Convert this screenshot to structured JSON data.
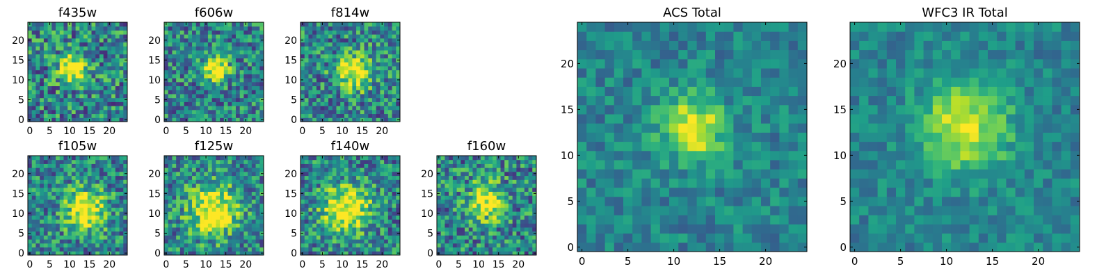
{
  "chart_data": [
    {
      "type": "heatmap",
      "title": "f435w",
      "grid_size": 25,
      "center": [
        11,
        13
      ],
      "peak": 0.68,
      "spread": 2.6,
      "noise": 0.34,
      "seed": 11,
      "xticks": [
        0,
        5,
        10,
        15,
        20
      ],
      "yticks": [
        0,
        5,
        10,
        15,
        20
      ],
      "xlim": [
        0,
        24
      ],
      "ylim": [
        0,
        24
      ],
      "colormap": "viridis"
    },
    {
      "type": "heatmap",
      "title": "f606w",
      "grid_size": 25,
      "center": [
        12.5,
        13
      ],
      "peak": 0.72,
      "spread": 2.1,
      "noise": 0.3,
      "seed": 22,
      "xticks": [
        0,
        5,
        10,
        15,
        20
      ],
      "yticks": [
        0,
        5,
        10,
        15,
        20
      ],
      "xlim": [
        0,
        24
      ],
      "ylim": [
        0,
        24
      ],
      "colormap": "viridis"
    },
    {
      "type": "heatmap",
      "title": "f814w",
      "grid_size": 25,
      "center": [
        13,
        12
      ],
      "peak": 0.6,
      "spread": 3.2,
      "noise": 0.32,
      "seed": 33,
      "xticks": [
        0,
        5,
        10,
        15,
        20
      ],
      "yticks": [
        0,
        5,
        10,
        15,
        20
      ],
      "xlim": [
        0,
        24
      ],
      "ylim": [
        0,
        24
      ],
      "colormap": "viridis"
    },
    {
      "type": "heatmap",
      "title": "f105w",
      "grid_size": 25,
      "center": [
        14,
        11
      ],
      "peak": 0.62,
      "spread": 3.6,
      "noise": 0.3,
      "seed": 44,
      "xticks": [
        0,
        5,
        10,
        15,
        20
      ],
      "yticks": [
        0,
        5,
        10,
        15,
        20
      ],
      "xlim": [
        0,
        24
      ],
      "ylim": [
        0,
        24
      ],
      "colormap": "viridis"
    },
    {
      "type": "heatmap",
      "title": "f125w",
      "grid_size": 25,
      "center": [
        12,
        11
      ],
      "peak": 0.62,
      "spread": 4.6,
      "noise": 0.3,
      "seed": 55,
      "xticks": [
        0,
        5,
        10,
        15,
        20
      ],
      "yticks": [
        0,
        5,
        10,
        15,
        20
      ],
      "xlim": [
        0,
        24
      ],
      "ylim": [
        0,
        24
      ],
      "colormap": "viridis"
    },
    {
      "type": "heatmap",
      "title": "f140w",
      "grid_size": 25,
      "center": [
        11,
        11
      ],
      "peak": 0.62,
      "spread": 4.2,
      "noise": 0.3,
      "seed": 66,
      "xticks": [
        0,
        5,
        10,
        15,
        20
      ],
      "yticks": [
        0,
        5,
        10,
        15,
        20
      ],
      "xlim": [
        0,
        24
      ],
      "ylim": [
        0,
        24
      ],
      "colormap": "viridis"
    },
    {
      "type": "heatmap",
      "title": "f160w",
      "grid_size": 25,
      "center": [
        12,
        13
      ],
      "peak": 0.6,
      "spread": 3.2,
      "noise": 0.32,
      "seed": 77,
      "xticks": [
        0,
        5,
        10,
        15,
        20
      ],
      "yticks": [
        0,
        5,
        10,
        15,
        20
      ],
      "xlim": [
        0,
        24
      ],
      "ylim": [
        0,
        24
      ],
      "colormap": "viridis"
    },
    {
      "type": "heatmap",
      "title": "ACS Total",
      "grid_size": 25,
      "center": [
        12,
        13
      ],
      "peak": 0.55,
      "spread": 2.4,
      "noise": 0.16,
      "seed": 88,
      "xticks": [
        0,
        5,
        10,
        15,
        20
      ],
      "yticks": [
        0,
        5,
        10,
        15,
        20
      ],
      "xlim": [
        0,
        24
      ],
      "ylim": [
        0,
        24
      ],
      "colormap": "viridis"
    },
    {
      "type": "heatmap",
      "title": "WFC3 IR Total",
      "grid_size": 25,
      "center": [
        12,
        13
      ],
      "peak": 0.5,
      "spread": 3.4,
      "noise": 0.14,
      "seed": 99,
      "xticks": [
        0,
        5,
        10,
        15,
        20
      ],
      "yticks": [
        0,
        5,
        10,
        15,
        20
      ],
      "xlim": [
        0,
        24
      ],
      "ylim": [
        0,
        24
      ],
      "colormap": "viridis"
    }
  ],
  "colors": {
    "viridis_stops": [
      "#440154",
      "#482878",
      "#3e4a89",
      "#31688e",
      "#26828e",
      "#1f9e89",
      "#35b779",
      "#6ece58",
      "#b5de2b",
      "#fde725"
    ]
  }
}
